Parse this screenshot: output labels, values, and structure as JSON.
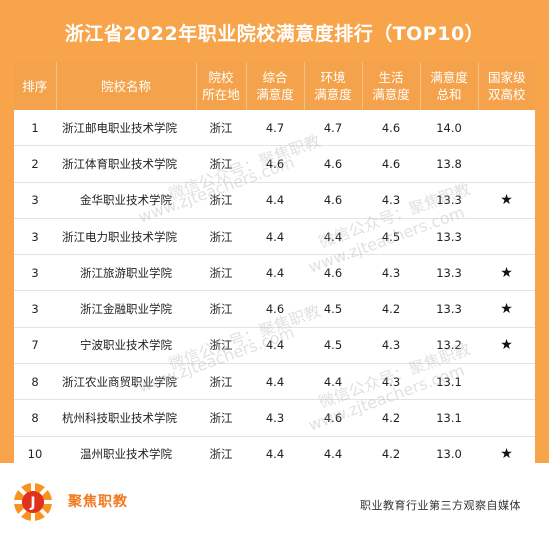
{
  "title": "浙江省2022年职业院校满意度排行（TOP10）",
  "table": {
    "headers": [
      {
        "line1": "排序",
        "line2": ""
      },
      {
        "line1": "院校名称",
        "line2": ""
      },
      {
        "line1": "院校",
        "line2": "所在地"
      },
      {
        "line1": "综合",
        "line2": "满意度"
      },
      {
        "line1": "环境",
        "line2": "满意度"
      },
      {
        "line1": "生活",
        "line2": "满意度"
      },
      {
        "line1": "满意度",
        "line2": "总和"
      },
      {
        "line1": "国家级",
        "line2": "双高校"
      }
    ],
    "rows": [
      {
        "rank": "1",
        "name": "浙江邮电职业技术学院",
        "location": "浙江",
        "overall": "4.7",
        "environment": "4.7",
        "life": "4.6",
        "total": "14.0",
        "star": ""
      },
      {
        "rank": "2",
        "name": "浙江体育职业技术学院",
        "location": "浙江",
        "overall": "4.6",
        "environment": "4.6",
        "life": "4.6",
        "total": "13.8",
        "star": ""
      },
      {
        "rank": "3",
        "name": "金华职业技术学院",
        "location": "浙江",
        "overall": "4.4",
        "environment": "4.6",
        "life": "4.3",
        "total": "13.3",
        "star": "★"
      },
      {
        "rank": "3",
        "name": "浙江电力职业技术学院",
        "location": "浙江",
        "overall": "4.4",
        "environment": "4.4",
        "life": "4.5",
        "total": "13.3",
        "star": ""
      },
      {
        "rank": "3",
        "name": "浙江旅游职业学院",
        "location": "浙江",
        "overall": "4.4",
        "environment": "4.6",
        "life": "4.3",
        "total": "13.3",
        "star": "★"
      },
      {
        "rank": "3",
        "name": "浙江金融职业学院",
        "location": "浙江",
        "overall": "4.6",
        "environment": "4.5",
        "life": "4.2",
        "total": "13.3",
        "star": "★"
      },
      {
        "rank": "7",
        "name": "宁波职业技术学院",
        "location": "浙江",
        "overall": "4.4",
        "environment": "4.5",
        "life": "4.3",
        "total": "13.2",
        "star": "★"
      },
      {
        "rank": "8",
        "name": "浙江农业商贸职业学院",
        "location": "浙江",
        "overall": "4.4",
        "environment": "4.4",
        "life": "4.3",
        "total": "13.1",
        "star": ""
      },
      {
        "rank": "8",
        "name": "杭州科技职业技术学院",
        "location": "浙江",
        "overall": "4.3",
        "environment": "4.6",
        "life": "4.2",
        "total": "13.1",
        "star": ""
      },
      {
        "rank": "10",
        "name": "温州职业技术学院",
        "location": "浙江",
        "overall": "4.4",
        "environment": "4.4",
        "life": "4.2",
        "total": "13.0",
        "star": "★"
      }
    ]
  },
  "watermark": {
    "text1": "微信公众号：聚焦职教",
    "text2": "www.zjteachers.com"
  },
  "footer": {
    "brand": "聚焦职教",
    "slogan": "职业教育行业第三方观察自媒体",
    "logo_letter": "J"
  }
}
